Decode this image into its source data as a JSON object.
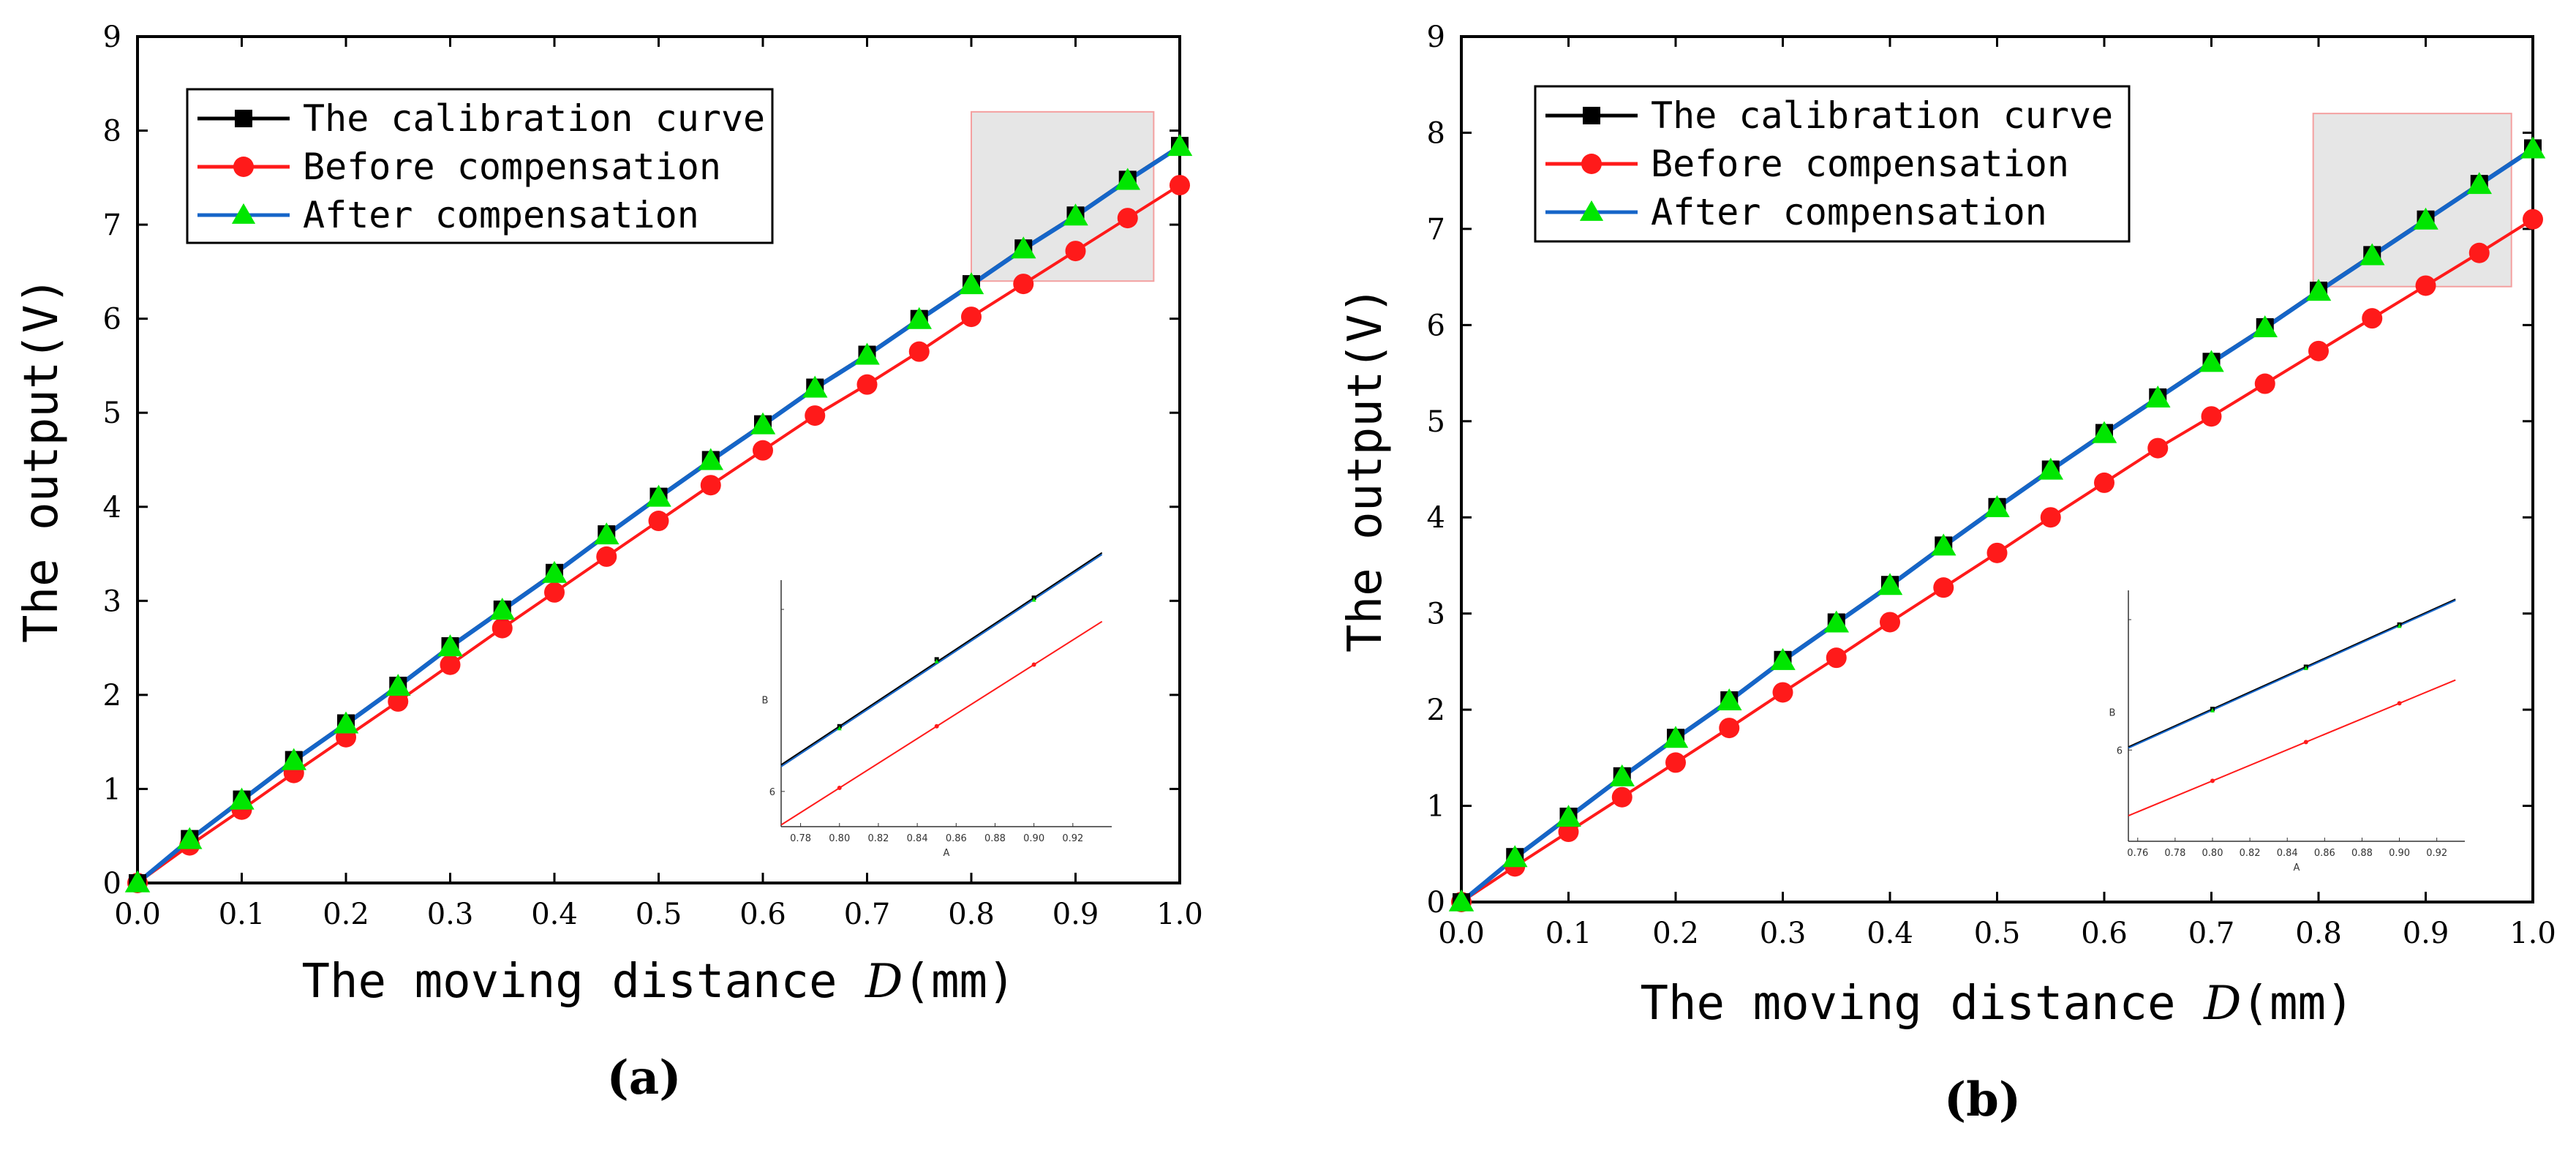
{
  "colors": {
    "calibration": "#000000",
    "before": "#ff1a1a",
    "after": "#1565c8",
    "after_marker": "#00e600",
    "highlight_fill": "#e6e6e6",
    "highlight_stroke": "#f4a0a0"
  },
  "chart_data": [
    {
      "type": "line",
      "panel_label": "(a)",
      "xlabel_prefix": "The moving distance ",
      "xlabel_var": "D",
      "xlabel_unit": "(mm)",
      "ylabel": "The output(V)",
      "xlim": [
        0.0,
        1.0
      ],
      "ylim": [
        0,
        9
      ],
      "x_ticks": [
        "0.0",
        "0.1",
        "0.2",
        "0.3",
        "0.4",
        "0.5",
        "0.6",
        "0.7",
        "0.8",
        "0.9",
        "1.0"
      ],
      "y_ticks": [
        "0",
        "1",
        "2",
        "3",
        "4",
        "5",
        "6",
        "7",
        "8",
        "9"
      ],
      "legend": [
        "The calibration curve",
        "Before compensation",
        "After compensation"
      ],
      "x": [
        0,
        0.05,
        0.1,
        0.15,
        0.2,
        0.25,
        0.3,
        0.35,
        0.4,
        0.45,
        0.5,
        0.55,
        0.6,
        0.65,
        0.7,
        0.75,
        0.8,
        0.85,
        0.9,
        0.95,
        1.0
      ],
      "series": [
        {
          "name": "The calibration curve",
          "values": [
            0,
            0.47,
            0.89,
            1.31,
            1.7,
            2.1,
            2.52,
            2.91,
            3.3,
            3.71,
            4.11,
            4.5,
            4.88,
            5.27,
            5.62,
            6.0,
            6.37,
            6.75,
            7.1,
            7.48,
            7.84
          ]
        },
        {
          "name": "Before compensation",
          "values": [
            0,
            0.4,
            0.78,
            1.17,
            1.55,
            1.93,
            2.32,
            2.71,
            3.09,
            3.47,
            3.85,
            4.23,
            4.6,
            4.97,
            5.3,
            5.65,
            6.02,
            6.37,
            6.72,
            7.07,
            7.42
          ]
        },
        {
          "name": "After compensation",
          "values": [
            0,
            0.46,
            0.88,
            1.3,
            1.69,
            2.09,
            2.51,
            2.9,
            3.29,
            3.7,
            4.1,
            4.49,
            4.87,
            5.26,
            5.61,
            5.99,
            6.36,
            6.74,
            7.09,
            7.47,
            7.83
          ]
        }
      ],
      "zoom_box": {
        "x": [
          0.8,
          0.975
        ],
        "y": [
          6.4,
          8.2
        ]
      },
      "inset": {
        "xlabel": "A",
        "ylabel": "B",
        "xlim": [
          0.77,
          0.94
        ],
        "ylim": [
          5.8,
          7.2
        ],
        "x_ticks": [
          "0.78",
          "0.80",
          "0.82",
          "0.84",
          "0.86",
          "0.88",
          "0.90",
          "0.92"
        ],
        "y_ticks": [
          "6"
        ],
        "points_x": [
          0.8,
          0.85,
          0.9
        ],
        "calibration": [
          6.37,
          6.75,
          7.1
        ],
        "before": [
          6.02,
          6.37,
          6.72
        ],
        "after": [
          6.36,
          6.74,
          7.09
        ]
      }
    },
    {
      "type": "line",
      "panel_label": "(b)",
      "xlabel_prefix": "The moving distance ",
      "xlabel_var": "D",
      "xlabel_unit": "(mm)",
      "ylabel": "The output(V)",
      "xlim": [
        0.0,
        1.0
      ],
      "ylim": [
        0,
        9
      ],
      "x_ticks": [
        "0.0",
        "0.1",
        "0.2",
        "0.3",
        "0.4",
        "0.5",
        "0.6",
        "0.7",
        "0.8",
        "0.9",
        "1.0"
      ],
      "y_ticks": [
        "0",
        "1",
        "2",
        "3",
        "4",
        "5",
        "6",
        "7",
        "8",
        "9"
      ],
      "legend": [
        "The calibration curve",
        "Before compensation",
        "After compensation"
      ],
      "x": [
        0,
        0.05,
        0.1,
        0.15,
        0.2,
        0.25,
        0.3,
        0.35,
        0.4,
        0.45,
        0.5,
        0.55,
        0.6,
        0.65,
        0.7,
        0.75,
        0.8,
        0.85,
        0.9,
        0.95,
        1.0
      ],
      "series": [
        {
          "name": "The calibration curve",
          "values": [
            0,
            0.47,
            0.89,
            1.31,
            1.71,
            2.1,
            2.52,
            2.91,
            3.3,
            3.71,
            4.11,
            4.5,
            4.88,
            5.25,
            5.62,
            5.98,
            6.36,
            6.73,
            7.1,
            7.47,
            7.84
          ]
        },
        {
          "name": "Before compensation",
          "values": [
            0,
            0.37,
            0.73,
            1.09,
            1.45,
            1.81,
            2.18,
            2.54,
            2.91,
            3.27,
            3.63,
            4.0,
            4.36,
            4.72,
            5.05,
            5.39,
            5.73,
            6.07,
            6.41,
            6.75,
            7.1
          ]
        },
        {
          "name": "After compensation",
          "values": [
            0,
            0.46,
            0.88,
            1.3,
            1.7,
            2.09,
            2.51,
            2.9,
            3.29,
            3.7,
            4.1,
            4.49,
            4.87,
            5.24,
            5.61,
            5.97,
            6.35,
            6.72,
            7.09,
            7.46,
            7.83
          ]
        }
      ],
      "zoom_box": {
        "x": [
          0.795,
          0.98
        ],
        "y": [
          6.4,
          8.2
        ]
      },
      "inset": {
        "xlabel": "A",
        "ylabel": "B",
        "xlim": [
          0.755,
          0.935
        ],
        "ylim": [
          5.2,
          7.4
        ],
        "x_ticks": [
          "0.76",
          "0.78",
          "0.80",
          "0.82",
          "0.84",
          "0.86",
          "0.88",
          "0.90",
          "0.92"
        ],
        "y_ticks": [
          "6"
        ],
        "points_x": [
          0.8,
          0.85,
          0.9
        ],
        "calibration": [
          6.36,
          6.73,
          7.1
        ],
        "before": [
          5.73,
          6.07,
          6.41
        ],
        "after": [
          6.35,
          6.72,
          7.09
        ]
      }
    }
  ]
}
